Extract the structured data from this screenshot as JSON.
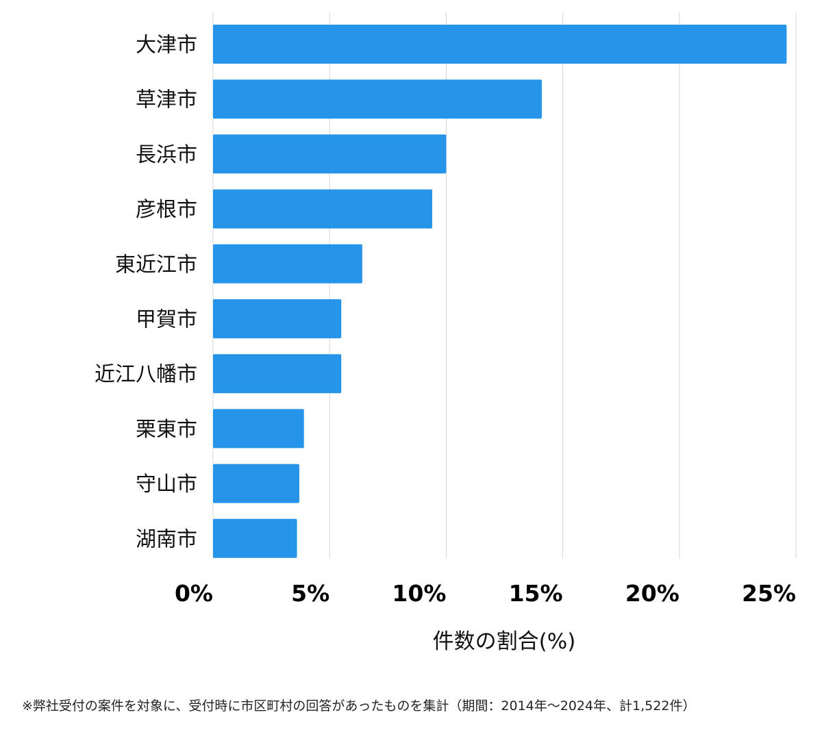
{
  "chart_data": {
    "type": "bar",
    "orientation": "horizontal",
    "categories": [
      "大津市",
      "草津市",
      "長浜市",
      "彦根市",
      "東近江市",
      "甲賀市",
      "近江八幡市",
      "栗東市",
      "守山市",
      "湖南市"
    ],
    "values": [
      24.6,
      14.1,
      10.0,
      9.4,
      6.4,
      5.5,
      5.5,
      3.9,
      3.7,
      3.6
    ],
    "xlabel": "件数の割合(%)",
    "ylabel": "",
    "xlim": [
      0,
      25
    ],
    "xticks": [
      0,
      5,
      10,
      15,
      20,
      25
    ],
    "xtick_labels": [
      "0%",
      "5%",
      "10%",
      "15%",
      "20%",
      "25%"
    ],
    "grid": true,
    "bar_color": "#2694e8",
    "grid_color": "#d4d4d4"
  },
  "footnote": "※弊社受付の案件を対象に、受付時に市区町村の回答があったものを集計（期間：2014年〜2024年、計1,522件）"
}
